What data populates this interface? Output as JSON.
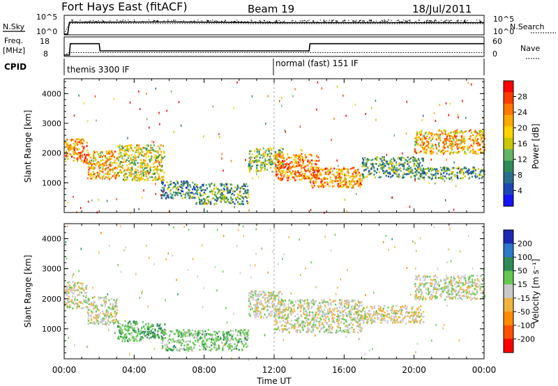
{
  "header": {
    "station": "Fort Hays East (fitACF)",
    "beam": "Beam 19",
    "date": "18/Jul/2011"
  },
  "panel_labels": {
    "nsky": "N.Sky",
    "nsearch": "N.Search",
    "freq_line1": "Freq.",
    "freq_line2": "[MHz]",
    "nave": "Nave",
    "cpid": "CPID"
  },
  "noise_axis": {
    "left_top": "10^5",
    "left_bottom": "10^0",
    "right_top": "10^5",
    "right_bottom": "10^0"
  },
  "freq_axis": {
    "left_top": "18",
    "left_bottom": "8",
    "right_top": "60",
    "right_bottom": "0"
  },
  "cpid_modes": [
    {
      "label": "themis 3300 IF",
      "start_hour": 0,
      "end_hour": 12
    },
    {
      "label": "normal (fast) 151 IF",
      "start_hour": 12,
      "end_hour": 24
    }
  ],
  "chart_data": [
    {
      "type": "line",
      "name": "noise",
      "series": [
        {
          "name": "N.Sky",
          "x_hours": [
            0,
            0.2,
            0.3,
            6,
            12,
            18,
            24
          ],
          "y_log10": [
            0,
            0,
            3.4,
            3.5,
            3.3,
            3.3,
            3.3
          ]
        },
        {
          "name": "N.Search",
          "x_hours": [
            0,
            0.3,
            12,
            24
          ],
          "y_log10": [
            0,
            3.1,
            3.0,
            3.0
          ]
        }
      ],
      "ylim_log10": [
        0,
        5
      ]
    },
    {
      "type": "line",
      "name": "frequency",
      "series": [
        {
          "name": "Freq.",
          "x_hours": [
            0,
            0.3,
            0.35,
            2.0,
            2.05,
            14.0,
            14.05,
            24
          ],
          "y_mhz": [
            8,
            8,
            14.8,
            14.8,
            10.5,
            10.5,
            14.8,
            14.8
          ]
        },
        {
          "name": "Nave",
          "x_hours": [
            0,
            0.3,
            24
          ],
          "y": [
            0,
            9,
            9
          ]
        }
      ],
      "ylim_left": [
        8,
        18
      ],
      "ylim_right": [
        0,
        60
      ]
    },
    {
      "type": "heatmap",
      "name": "power",
      "xlabel": "",
      "ylabel": "Slant Range [km]",
      "xlim": [
        0,
        24
      ],
      "ylim": [
        0,
        4500
      ],
      "y_ticks": [
        1000,
        2000,
        3000,
        4000
      ],
      "colorbar": {
        "label": "Power [dB]",
        "ticks": [
          "28",
          "24",
          "20",
          "16",
          "12",
          "8",
          "4"
        ],
        "colors": [
          "#ff0000",
          "#ff3c00",
          "#ff7800",
          "#ffaa00",
          "#ffd200",
          "#c8c800",
          "#64b464",
          "#2e8b57",
          "#2a6e8c",
          "#1e46b4",
          "#1414ff"
        ]
      },
      "echo_regions": [
        {
          "x": [
            0.0,
            1.3
          ],
          "y": [
            1700,
            2500
          ],
          "level": 22
        },
        {
          "x": [
            1.3,
            3.0
          ],
          "y": [
            1150,
            2100
          ],
          "level": 20
        },
        {
          "x": [
            3.0,
            5.7
          ],
          "y": [
            1100,
            2300
          ],
          "level": 16
        },
        {
          "x": [
            5.5,
            7.5
          ],
          "y": [
            500,
            1100
          ],
          "level": 8
        },
        {
          "x": [
            7.5,
            10.5
          ],
          "y": [
            300,
            1000
          ],
          "level": 10
        },
        {
          "x": [
            10.5,
            12.5
          ],
          "y": [
            1400,
            2200
          ],
          "level": 14
        },
        {
          "x": [
            12.0,
            14.5
          ],
          "y": [
            1100,
            2000
          ],
          "level": 24
        },
        {
          "x": [
            14.0,
            17.0
          ],
          "y": [
            850,
            1550
          ],
          "level": 22
        },
        {
          "x": [
            17.0,
            20.5
          ],
          "y": [
            1200,
            1900
          ],
          "level": 10
        },
        {
          "x": [
            20.0,
            24.0
          ],
          "y": [
            2000,
            2800
          ],
          "level": 20
        },
        {
          "x": [
            20.0,
            24.0
          ],
          "y": [
            1150,
            1550
          ],
          "level": 10
        }
      ]
    },
    {
      "type": "heatmap",
      "name": "velocity",
      "xlabel": "Time UT",
      "ylabel": "Slant Range [km]",
      "xlim": [
        0,
        24
      ],
      "ylim": [
        0,
        4500
      ],
      "x_ticks": [
        "00:00",
        "04:00",
        "08:00",
        "12:00",
        "16:00",
        "20:00",
        "00:00"
      ],
      "y_ticks": [
        1000,
        2000,
        3000,
        4000
      ],
      "colorbar": {
        "label": "Velocity [m s⁻¹]",
        "ticks": [
          "200",
          "100",
          "50",
          "15",
          "-15",
          "-50",
          "-100",
          "-200"
        ],
        "colors": [
          "#1e28b4",
          "#2d78c8",
          "#2e8b57",
          "#64c850",
          "#c8c8c8",
          "#f0b43c",
          "#ff8c00",
          "#ff5000",
          "#ff0000"
        ]
      },
      "echo_regions": [
        {
          "x": [
            0.0,
            1.3
          ],
          "y": [
            1700,
            2600
          ],
          "level": 0
        },
        {
          "x": [
            1.3,
            3.0
          ],
          "y": [
            1150,
            2100
          ],
          "level": 0
        },
        {
          "x": [
            3.0,
            4.5
          ],
          "y": [
            600,
            1300
          ],
          "level": 40
        },
        {
          "x": [
            4.5,
            5.8
          ],
          "y": [
            700,
            1200
          ],
          "level": 60
        },
        {
          "x": [
            5.5,
            10.5
          ],
          "y": [
            300,
            1000
          ],
          "level": 30
        },
        {
          "x": [
            10.5,
            12.5
          ],
          "y": [
            1400,
            2300
          ],
          "level": 0
        },
        {
          "x": [
            12.0,
            17.0
          ],
          "y": [
            900,
            2000
          ],
          "level": 0
        },
        {
          "x": [
            17.0,
            20.5
          ],
          "y": [
            1200,
            1800
          ],
          "level": -10
        },
        {
          "x": [
            20.0,
            24.0
          ],
          "y": [
            2000,
            2800
          ],
          "level": 0
        }
      ]
    }
  ],
  "colors": {
    "frame": "#000000",
    "bg": "#ffffff",
    "dashed": "#aaaaaa"
  }
}
